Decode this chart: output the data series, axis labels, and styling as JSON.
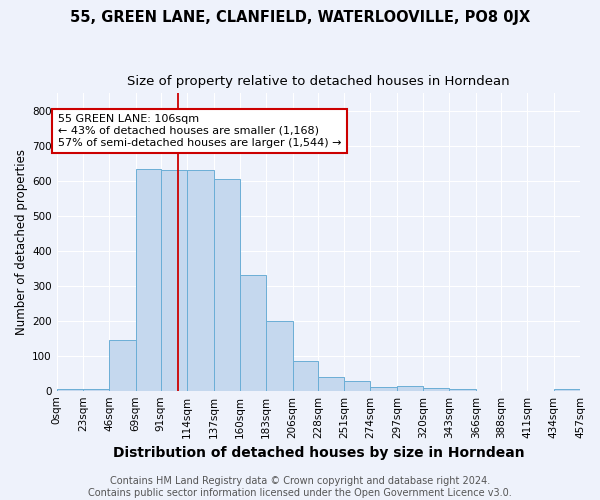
{
  "title": "55, GREEN LANE, CLANFIELD, WATERLOOVILLE, PO8 0JX",
  "subtitle": "Size of property relative to detached houses in Horndean",
  "xlabel": "Distribution of detached houses by size in Horndean",
  "ylabel": "Number of detached properties",
  "bin_edges": [
    0,
    23,
    46,
    69,
    91,
    114,
    137,
    160,
    183,
    206,
    228,
    251,
    274,
    297,
    320,
    343,
    366,
    388,
    411,
    434,
    457
  ],
  "bar_heights": [
    5,
    5,
    145,
    635,
    630,
    630,
    605,
    330,
    200,
    85,
    40,
    28,
    10,
    12,
    8,
    5,
    0,
    0,
    0,
    5
  ],
  "bar_color": "#c5d8ee",
  "bar_edgecolor": "#6baed6",
  "vline_x": 106,
  "vline_color": "#cc0000",
  "annotation_text": "55 GREEN LANE: 106sqm\n← 43% of detached houses are smaller (1,168)\n57% of semi-detached houses are larger (1,544) →",
  "annotation_box_facecolor": "white",
  "annotation_box_edgecolor": "#cc0000",
  "ylim": [
    0,
    850
  ],
  "yticks": [
    0,
    100,
    200,
    300,
    400,
    500,
    600,
    700,
    800
  ],
  "background_color": "#eef2fb",
  "plot_bg_color": "#eef2fb",
  "grid_color": "white",
  "footer_text": "Contains HM Land Registry data © Crown copyright and database right 2024.\nContains public sector information licensed under the Open Government Licence v3.0.",
  "title_fontsize": 10.5,
  "subtitle_fontsize": 9.5,
  "xlabel_fontsize": 10,
  "ylabel_fontsize": 8.5,
  "footer_fontsize": 7,
  "tick_fontsize": 7.5,
  "annot_fontsize": 8
}
